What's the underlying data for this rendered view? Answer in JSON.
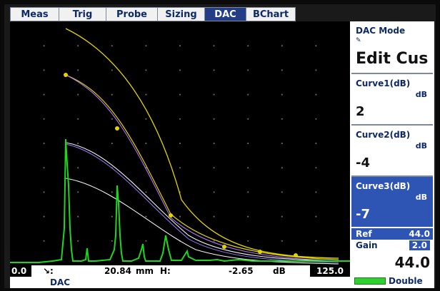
{
  "tabs": [
    {
      "label": "Meas",
      "active": false
    },
    {
      "label": "Trig",
      "active": false
    },
    {
      "label": "Probe",
      "active": false
    },
    {
      "label": "Sizing",
      "active": false
    },
    {
      "label": "DAC",
      "active": true
    },
    {
      "label": "BChart",
      "active": false
    }
  ],
  "status": {
    "range_start": "0.0",
    "arrow_label": "↘:",
    "distance": "20.84",
    "distance_unit": "mm",
    "h_label": "H:",
    "h_value": "-2.65",
    "h_unit": "dB",
    "range_end": "125.0",
    "mode": "DAC"
  },
  "panel": {
    "mode_title": "DAC Mode",
    "mode_icon": "pencil-icon",
    "mode_value": "Edit Cus",
    "curve1": {
      "label": "Curve1(dB)",
      "unit": "dB",
      "value": "2"
    },
    "curve2": {
      "label": "Curve2(dB)",
      "unit": "dB",
      "value": "-4"
    },
    "curve3": {
      "label": "Curve3(dB)",
      "unit": "dB",
      "value": "-7"
    },
    "ref": {
      "label": "Ref",
      "value": "44.0"
    },
    "gain": {
      "label": "Gain",
      "value": "2.0",
      "big_value": "44.0"
    },
    "footer": {
      "battery_icon": "battery-icon",
      "label": "Double"
    }
  },
  "colors": {
    "tab_active": "#233e86",
    "panel_selected": "#2f55b4",
    "signal": "#1fd61f",
    "curve_yellow": "#e3d400",
    "curve_white": "#f2f2f2",
    "curve_purple": "#b177ff"
  }
}
